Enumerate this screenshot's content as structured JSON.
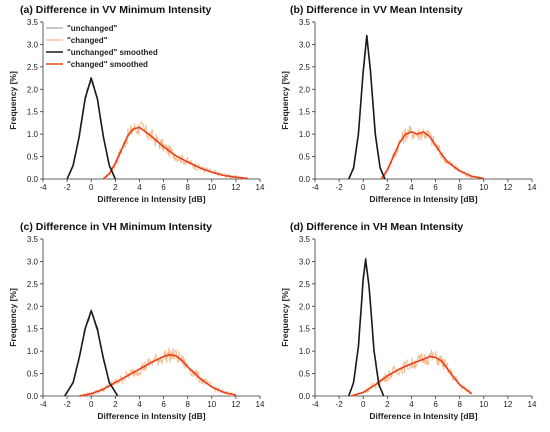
{
  "colors": {
    "unchanged_raw": "#a9a9a9",
    "changed_raw": "#f6b98a",
    "unchanged_smoothed": "#1a1a1a",
    "changed_smoothed": "#e8401c"
  },
  "chart_data": [
    {
      "type": "line",
      "title": "(a) Difference in VV Minimum Intensity",
      "xlabel": "Difference in Intensity [dB]",
      "ylabel": "Frequency [%]",
      "xlim": [
        -4,
        14
      ],
      "ylim": [
        0,
        3.5
      ],
      "xticks": [
        -4,
        -2,
        0,
        2,
        4,
        6,
        8,
        10,
        12,
        14
      ],
      "yticks": [
        0.0,
        0.5,
        1.0,
        1.5,
        2.0,
        2.5,
        3.0,
        3.5
      ],
      "grid": false,
      "legend": {
        "placement": "top-left",
        "entries": [
          "\"unchanged\"",
          "\"changed\"",
          "\"unchanged\" smoothed",
          "\"changed\" smoothed"
        ]
      },
      "series": [
        {
          "name": "\"unchanged\" smoothed",
          "x": [
            -2,
            -1.5,
            -1,
            -0.5,
            0,
            0.5,
            1,
            1.5,
            2
          ],
          "y": [
            0.0,
            0.3,
            0.95,
            1.8,
            2.25,
            1.8,
            0.95,
            0.3,
            0.0
          ]
        },
        {
          "name": "\"changed\" smoothed",
          "x": [
            1,
            1.5,
            2,
            2.5,
            3,
            3.5,
            4,
            4.5,
            5,
            6,
            7,
            8,
            9,
            10,
            11,
            12,
            13
          ],
          "y": [
            0.0,
            0.12,
            0.35,
            0.65,
            0.95,
            1.12,
            1.15,
            1.05,
            0.95,
            0.72,
            0.52,
            0.38,
            0.25,
            0.15,
            0.08,
            0.04,
            0.01
          ]
        }
      ]
    },
    {
      "type": "line",
      "title": "(b) Difference in VV Mean Intensity",
      "xlabel": "Difference in Intensity [dB]",
      "ylabel": "Frequency [%]",
      "xlim": [
        -4,
        14
      ],
      "ylim": [
        0,
        3.5
      ],
      "xticks": [
        -4,
        -2,
        0,
        2,
        4,
        6,
        8,
        10,
        12,
        14
      ],
      "yticks": [
        0.0,
        0.5,
        1.0,
        1.5,
        2.0,
        2.5,
        3.0,
        3.5
      ],
      "grid": false,
      "series": [
        {
          "name": "\"unchanged\" smoothed",
          "x": [
            -1.2,
            -0.8,
            -0.4,
            0,
            0.3,
            0.6,
            1,
            1.4,
            1.8
          ],
          "y": [
            0.0,
            0.25,
            1.0,
            2.4,
            3.2,
            2.4,
            1.0,
            0.25,
            0.0
          ]
        },
        {
          "name": "\"changed\" smoothed",
          "x": [
            1.5,
            2,
            2.5,
            3,
            3.5,
            4,
            4.5,
            5,
            5.5,
            6,
            6.5,
            7,
            8,
            9,
            10
          ],
          "y": [
            0.0,
            0.2,
            0.5,
            0.8,
            1.0,
            1.05,
            1.0,
            1.05,
            0.95,
            0.75,
            0.55,
            0.38,
            0.18,
            0.06,
            0.01
          ]
        }
      ]
    },
    {
      "type": "line",
      "title": "(c) Difference in VH Minimum Intensity",
      "xlabel": "Difference in Intensity [dB]",
      "ylabel": "Frequency [%]",
      "xlim": [
        -4,
        14
      ],
      "ylim": [
        0,
        3.5
      ],
      "xticks": [
        -4,
        -2,
        0,
        2,
        4,
        6,
        8,
        10,
        12,
        14
      ],
      "yticks": [
        0.0,
        0.5,
        1.0,
        1.5,
        2.0,
        2.5,
        3.0,
        3.5
      ],
      "grid": false,
      "series": [
        {
          "name": "\"unchanged\" smoothed",
          "x": [
            -2.2,
            -1.5,
            -1,
            -0.5,
            0,
            0.5,
            1,
            1.5,
            2.2
          ],
          "y": [
            0.0,
            0.3,
            0.85,
            1.5,
            1.9,
            1.5,
            0.85,
            0.3,
            0.0
          ]
        },
        {
          "name": "\"changed\" smoothed",
          "x": [
            -1,
            0,
            1,
            2,
            3,
            4,
            5,
            6,
            6.5,
            7,
            7.5,
            8,
            9,
            10,
            11,
            12
          ],
          "y": [
            0.0,
            0.05,
            0.15,
            0.3,
            0.45,
            0.6,
            0.75,
            0.88,
            0.92,
            0.9,
            0.8,
            0.65,
            0.4,
            0.2,
            0.08,
            0.02
          ]
        }
      ]
    },
    {
      "type": "line",
      "title": "(d) Difference in VH Mean Intensity",
      "xlabel": "Difference in Intensity [dB]",
      "ylabel": "Frequency [%]",
      "xlim": [
        -4,
        14
      ],
      "ylim": [
        0,
        3.5
      ],
      "xticks": [
        -4,
        -2,
        0,
        2,
        4,
        6,
        8,
        10,
        12,
        14
      ],
      "yticks": [
        0.0,
        0.5,
        1.0,
        1.5,
        2.0,
        2.5,
        3.0,
        3.5
      ],
      "grid": false,
      "series": [
        {
          "name": "\"unchanged\" smoothed",
          "x": [
            -1.2,
            -0.8,
            -0.4,
            0,
            0.2,
            0.5,
            0.9,
            1.3,
            1.7
          ],
          "y": [
            0.0,
            0.3,
            1.1,
            2.6,
            3.05,
            2.4,
            1.0,
            0.25,
            0.0
          ]
        },
        {
          "name": "\"changed\" smoothed",
          "x": [
            -1,
            0,
            1,
            2,
            3,
            4,
            5,
            5.5,
            6,
            6.5,
            7,
            7.5,
            8,
            9
          ],
          "y": [
            0.0,
            0.08,
            0.25,
            0.45,
            0.6,
            0.72,
            0.82,
            0.88,
            0.86,
            0.78,
            0.6,
            0.42,
            0.25,
            0.05
          ]
        }
      ]
    }
  ]
}
